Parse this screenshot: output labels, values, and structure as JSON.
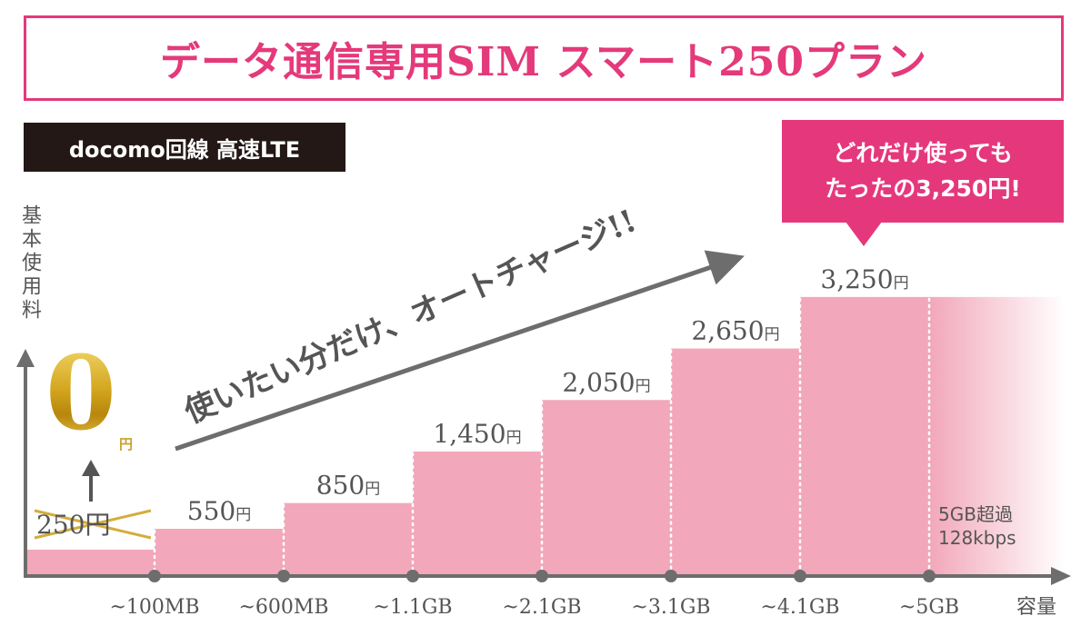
{
  "title": "データ通信専用SIM スマート250プラン",
  "carrier_badge": "docomo回線  高速LTE",
  "callout": {
    "line1": "どれだけ使っても",
    "line2": "たったの3,250円!"
  },
  "ylabel": "基本使用料",
  "xlabel": "容量",
  "zero_value": "0",
  "zero_unit": "円",
  "strike_price": "250円",
  "auto_charge_text": "使いたい分だけ、オートチャージ!!",
  "throttle": {
    "line1": "5GB超過",
    "line2": "128kbps"
  },
  "colors": {
    "bar": "#f2a7ba",
    "accent": "#e4397a",
    "gold": "#c8a02a",
    "axis": "#6d6d6d"
  },
  "chart_data": {
    "type": "bar",
    "categories": [
      "~100MB",
      "~600MB",
      "~1.1GB",
      "~2.1GB",
      "~3.1GB",
      "~4.1GB",
      "~5GB"
    ],
    "values": [
      0,
      550,
      850,
      1450,
      2050,
      2650,
      3250
    ],
    "value_labels": [
      "",
      "550円",
      "850円",
      "1,450円",
      "2,050円",
      "2,650円",
      "3,250円"
    ],
    "ylim": [
      0,
      3700
    ],
    "grid": false
  }
}
